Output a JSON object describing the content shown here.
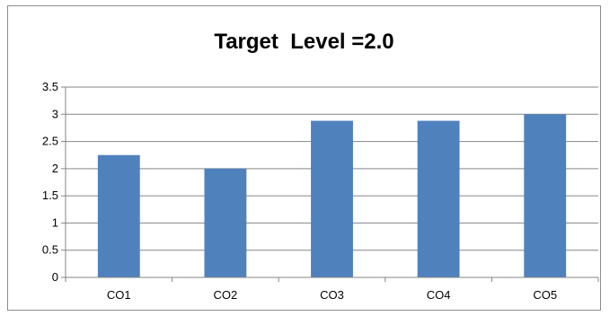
{
  "chart_data": {
    "type": "bar",
    "title": "Target  Level =2.0",
    "xlabel": "",
    "ylabel": "",
    "categories": [
      "CO1",
      "CO2",
      "CO3",
      "CO4",
      "CO5"
    ],
    "values": [
      2.25,
      2.0,
      2.88,
      2.88,
      3.0
    ],
    "ylim": [
      0,
      3.5
    ],
    "yticks": [
      "0",
      "0.5",
      "1",
      "1.5",
      "2",
      "2.5",
      "3",
      "3.5"
    ],
    "grid": true,
    "legend": "none",
    "bar_color": "#4f81bd",
    "grid_color": "#868686"
  }
}
